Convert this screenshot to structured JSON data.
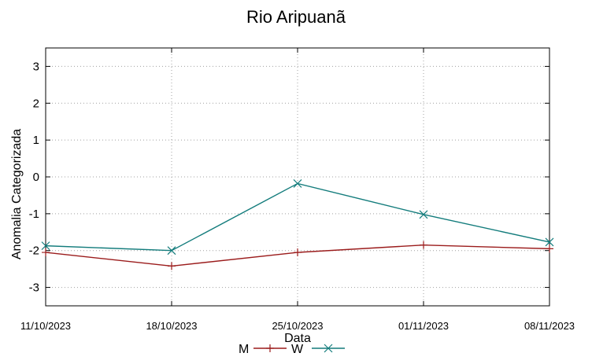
{
  "chart_data": {
    "type": "line",
    "title": "Rio Aripuanã",
    "xlabel": "Data",
    "ylabel": "Anomalia Categorizada",
    "categories": [
      "11/10/2023",
      "18/10/2023",
      "25/10/2023",
      "01/11/2023",
      "08/11/2023"
    ],
    "ylim": [
      -3.5,
      3.5
    ],
    "yticks": [
      -3,
      -2,
      -1,
      0,
      1,
      2,
      3
    ],
    "grid": true,
    "legend_position": "bottom-center",
    "series": [
      {
        "name": "M",
        "color": "#9b1c1c",
        "marker": "plus",
        "values": [
          -2.05,
          -2.42,
          -2.05,
          -1.85,
          -1.95
        ]
      },
      {
        "name": "W",
        "color": "#137c7c",
        "marker": "x",
        "values": [
          -1.87,
          -2.0,
          -0.18,
          -1.02,
          -1.77
        ]
      }
    ]
  }
}
